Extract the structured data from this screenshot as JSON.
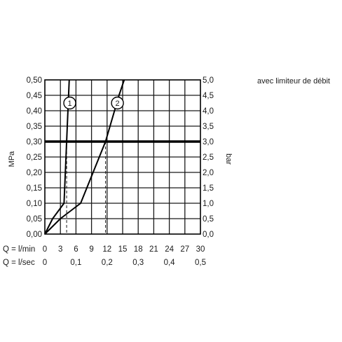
{
  "caption": "avec limiteur de débit",
  "chart_data": {
    "type": "line",
    "x_unit": "l/min",
    "xlim": [
      0,
      30
    ],
    "ylim": [
      0,
      0.5
    ],
    "y2lim": [
      0,
      5.0
    ],
    "ylabel": "MPa",
    "y2label": "bar",
    "grid": true,
    "x_label_min": "Q = l/min",
    "x_label_sec": "Q = l/sec",
    "x_ticks_min": [
      "0",
      "3",
      "6",
      "9",
      "12",
      "15",
      "18",
      "21",
      "24",
      "27",
      "30"
    ],
    "x_ticks_min_values": [
      0,
      3,
      6,
      9,
      12,
      15,
      18,
      21,
      24,
      27,
      30
    ],
    "x_ticks_sec": [
      "0",
      "0,1",
      "0,2",
      "0,3",
      "0,4",
      "0,5"
    ],
    "x_ticks_sec_values": [
      0,
      0.1,
      0.2,
      0.3,
      0.4,
      0.5
    ],
    "y_ticks_left": [
      "0,00",
      "0,05",
      "0,10",
      "0,15",
      "0,20",
      "0,25",
      "0,30",
      "0,35",
      "0,40",
      "0,45",
      "0,50"
    ],
    "y_ticks_left_values": [
      0,
      0.05,
      0.1,
      0.15,
      0.2,
      0.25,
      0.3,
      0.35,
      0.4,
      0.45,
      0.5
    ],
    "y_ticks_right": [
      "0,0",
      "0,5",
      "1,0",
      "1,5",
      "2,0",
      "2,5",
      "3,0",
      "3,5",
      "4,0",
      "4,5",
      "5,0"
    ],
    "y_ticks_right_values": [
      0,
      0.5,
      1.0,
      1.5,
      2.0,
      2.5,
      3.0,
      3.5,
      4.0,
      4.5,
      5.0
    ],
    "reference_line": {
      "y": 0.3
    },
    "series": [
      {
        "marker": "1",
        "points": [
          [
            0,
            0
          ],
          [
            1.5,
            0.05
          ],
          [
            3.7,
            0.1
          ],
          [
            4.2,
            0.3
          ],
          [
            4.7,
            0.5
          ]
        ],
        "label_point": [
          4.8,
          0.425
        ],
        "intersect_x": 4.2
      },
      {
        "marker": "2",
        "points": [
          [
            0,
            0
          ],
          [
            3,
            0.05
          ],
          [
            6.9,
            0.1
          ],
          [
            11.7,
            0.3
          ],
          [
            14.3,
            0.45
          ],
          [
            15.3,
            0.5
          ]
        ],
        "label_point": [
          14.0,
          0.425
        ],
        "intersect_x": 11.7
      }
    ]
  }
}
